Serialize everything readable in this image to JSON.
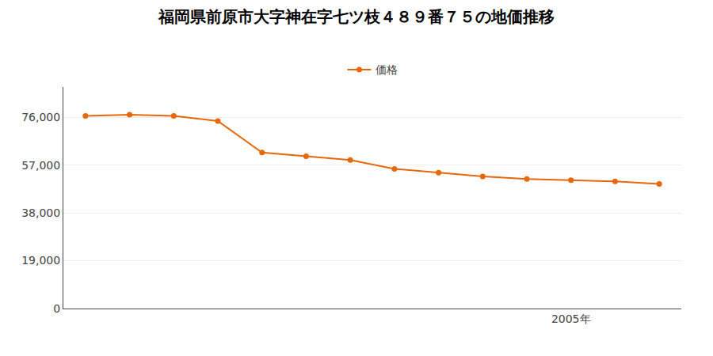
{
  "chart_data": {
    "type": "line",
    "title": "福岡県前原市大字神在字七ツ枝４８９番７５の地価推移",
    "x": [
      1994,
      1995,
      1996,
      1997,
      1998,
      1999,
      2000,
      2001,
      2002,
      2003,
      2004,
      2005,
      2006,
      2007
    ],
    "series": [
      {
        "name": "価格",
        "color": "#e8670a",
        "marker": "circle",
        "line_style": "solid",
        "values": [
          76500,
          77000,
          76500,
          74500,
          62000,
          60500,
          59000,
          55500,
          54000,
          52500,
          51500,
          51000,
          50500,
          49500
        ]
      }
    ],
    "xlim": [
      1993.5,
      2007.5
    ],
    "xticks": [
      {
        "value": 2005,
        "label": "2005年"
      }
    ],
    "ylim": [
      0,
      88000
    ],
    "yticks": [
      0,
      {
        "value": 19000,
        "label": "19,000"
      },
      {
        "value": 38000,
        "label": "38,000"
      },
      {
        "value": 57000,
        "label": "57,000"
      },
      {
        "value": 76000,
        "label": "76,000"
      }
    ],
    "grid": "y",
    "legend": "top"
  }
}
